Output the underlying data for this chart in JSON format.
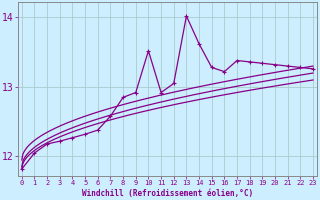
{
  "xlabel": "Windchill (Refroidissement éolien,°C)",
  "bg_color": "#cceeff",
  "grid_color": "#aacccc",
  "line_color": "#880088",
  "spine_color": "#888888",
  "x_ticks": [
    0,
    1,
    2,
    3,
    4,
    5,
    6,
    7,
    8,
    9,
    10,
    11,
    12,
    13,
    14,
    15,
    16,
    17,
    18,
    19,
    20,
    21,
    22,
    23
  ],
  "y_ticks": [
    12,
    13,
    14
  ],
  "xlim": [
    -0.3,
    23.3
  ],
  "ylim": [
    11.72,
    14.22
  ],
  "data_x": [
    0,
    1,
    2,
    3,
    4,
    5,
    6,
    7,
    8,
    9,
    10,
    11,
    12,
    13,
    14,
    15,
    16,
    17,
    18,
    19,
    20,
    21,
    22,
    23
  ],
  "data_y": [
    11.82,
    12.05,
    12.18,
    12.22,
    12.27,
    12.32,
    12.38,
    12.58,
    12.85,
    12.92,
    13.52,
    12.92,
    13.05,
    14.02,
    13.62,
    13.28,
    13.22,
    13.38,
    13.36,
    13.34,
    13.32,
    13.3,
    13.28,
    13.26
  ],
  "smooth1_a": 11.82,
  "smooth1_b": 1.38,
  "smooth1_c": 4.5,
  "smooth2_a": 11.85,
  "smooth2_b": 1.42,
  "smooth2_c": 5.5,
  "smooth3_a": 11.95,
  "smooth3_b": 1.38,
  "smooth3_c": 7.0
}
